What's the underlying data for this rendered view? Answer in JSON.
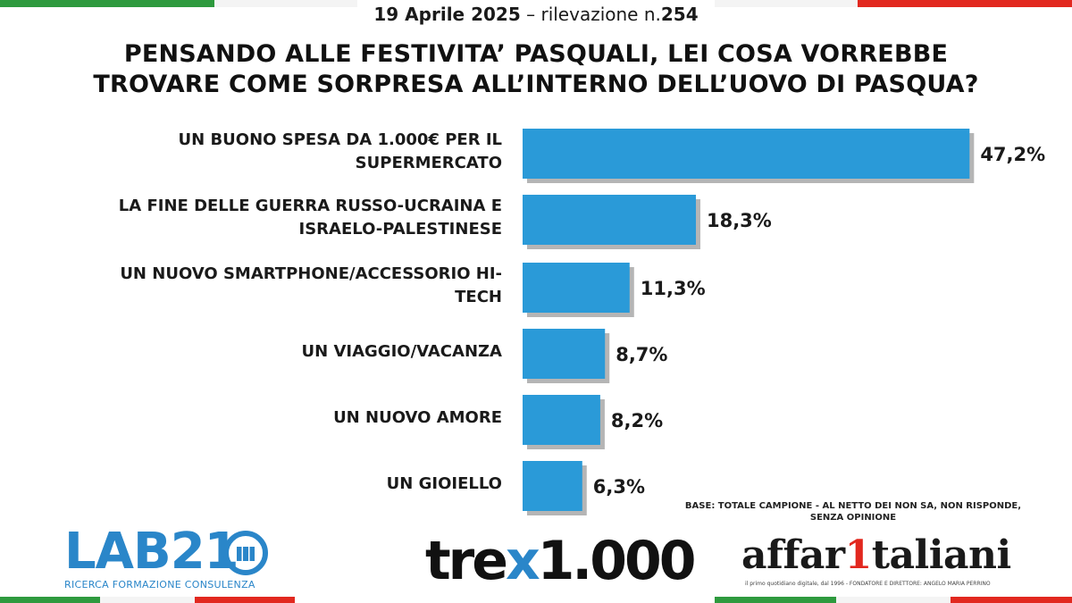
{
  "header": {
    "date": "19 Aprile 2025",
    "separator": " – rilevazione n.",
    "survey_number": "254"
  },
  "title_lines": [
    "PENSANDO ALLE FESTIVITA’ PASQUALI, LEI COSA VORREBBE",
    "TROVARE COME SORPRESA ALL’INTERNO DELL’UOVO DI PASQUA?"
  ],
  "chart_data": {
    "type": "bar",
    "orientation": "horizontal",
    "title": "PENSANDO ALLE FESTIVITA’ PASQUALI, LEI COSA VORREBBE TROVARE COME SORPRESA ALL’INTERNO DELL’UOVO DI PASQUA?",
    "categories": [
      [
        "UN BUONO SPESA DA 1.000€ PER IL",
        "SUPERMERCATO"
      ],
      [
        "LA FINE DELLE GUERRA RUSSO-UCRAINA E",
        "ISRAELO-PALESTINESE"
      ],
      [
        "UN NUOVO SMARTPHONE/ACCESSORIO HI-",
        "TECH"
      ],
      [
        "UN VIAGGIO/VACANZA"
      ],
      [
        "UN NUOVO AMORE"
      ],
      [
        "UN GIOIELLO"
      ]
    ],
    "values": [
      47.2,
      18.3,
      11.3,
      8.7,
      8.2,
      6.3
    ],
    "value_labels": [
      "47,2%",
      "18,3%",
      "11,3%",
      "8,7%",
      "8,2%",
      "6,3%"
    ],
    "bar_color": "#2a9ad8",
    "shadow_color": "#b5b5b5",
    "grid": false,
    "legend": "none"
  },
  "note": {
    "line1": "BASE: TOTALE CAMPIONE - AL NETTO DEI NON SA, NON RISPONDE,",
    "line2": "SENZA OPINIONE"
  },
  "logos": {
    "lab21": {
      "name": "LAB21",
      "subtitle": "RICERCA FORMAZIONE CONSULENZA"
    },
    "tre": {
      "prefix": "tre",
      "x": "x",
      "suffix": "1.000"
    },
    "affari": {
      "pre": "affar",
      "one": "1",
      "post": "taliani",
      "tagline": "il primo quotidiano digitale, dal 1996 - FONDATORE E DIRETTORE: ANGELO MARIA PERRINO"
    }
  }
}
